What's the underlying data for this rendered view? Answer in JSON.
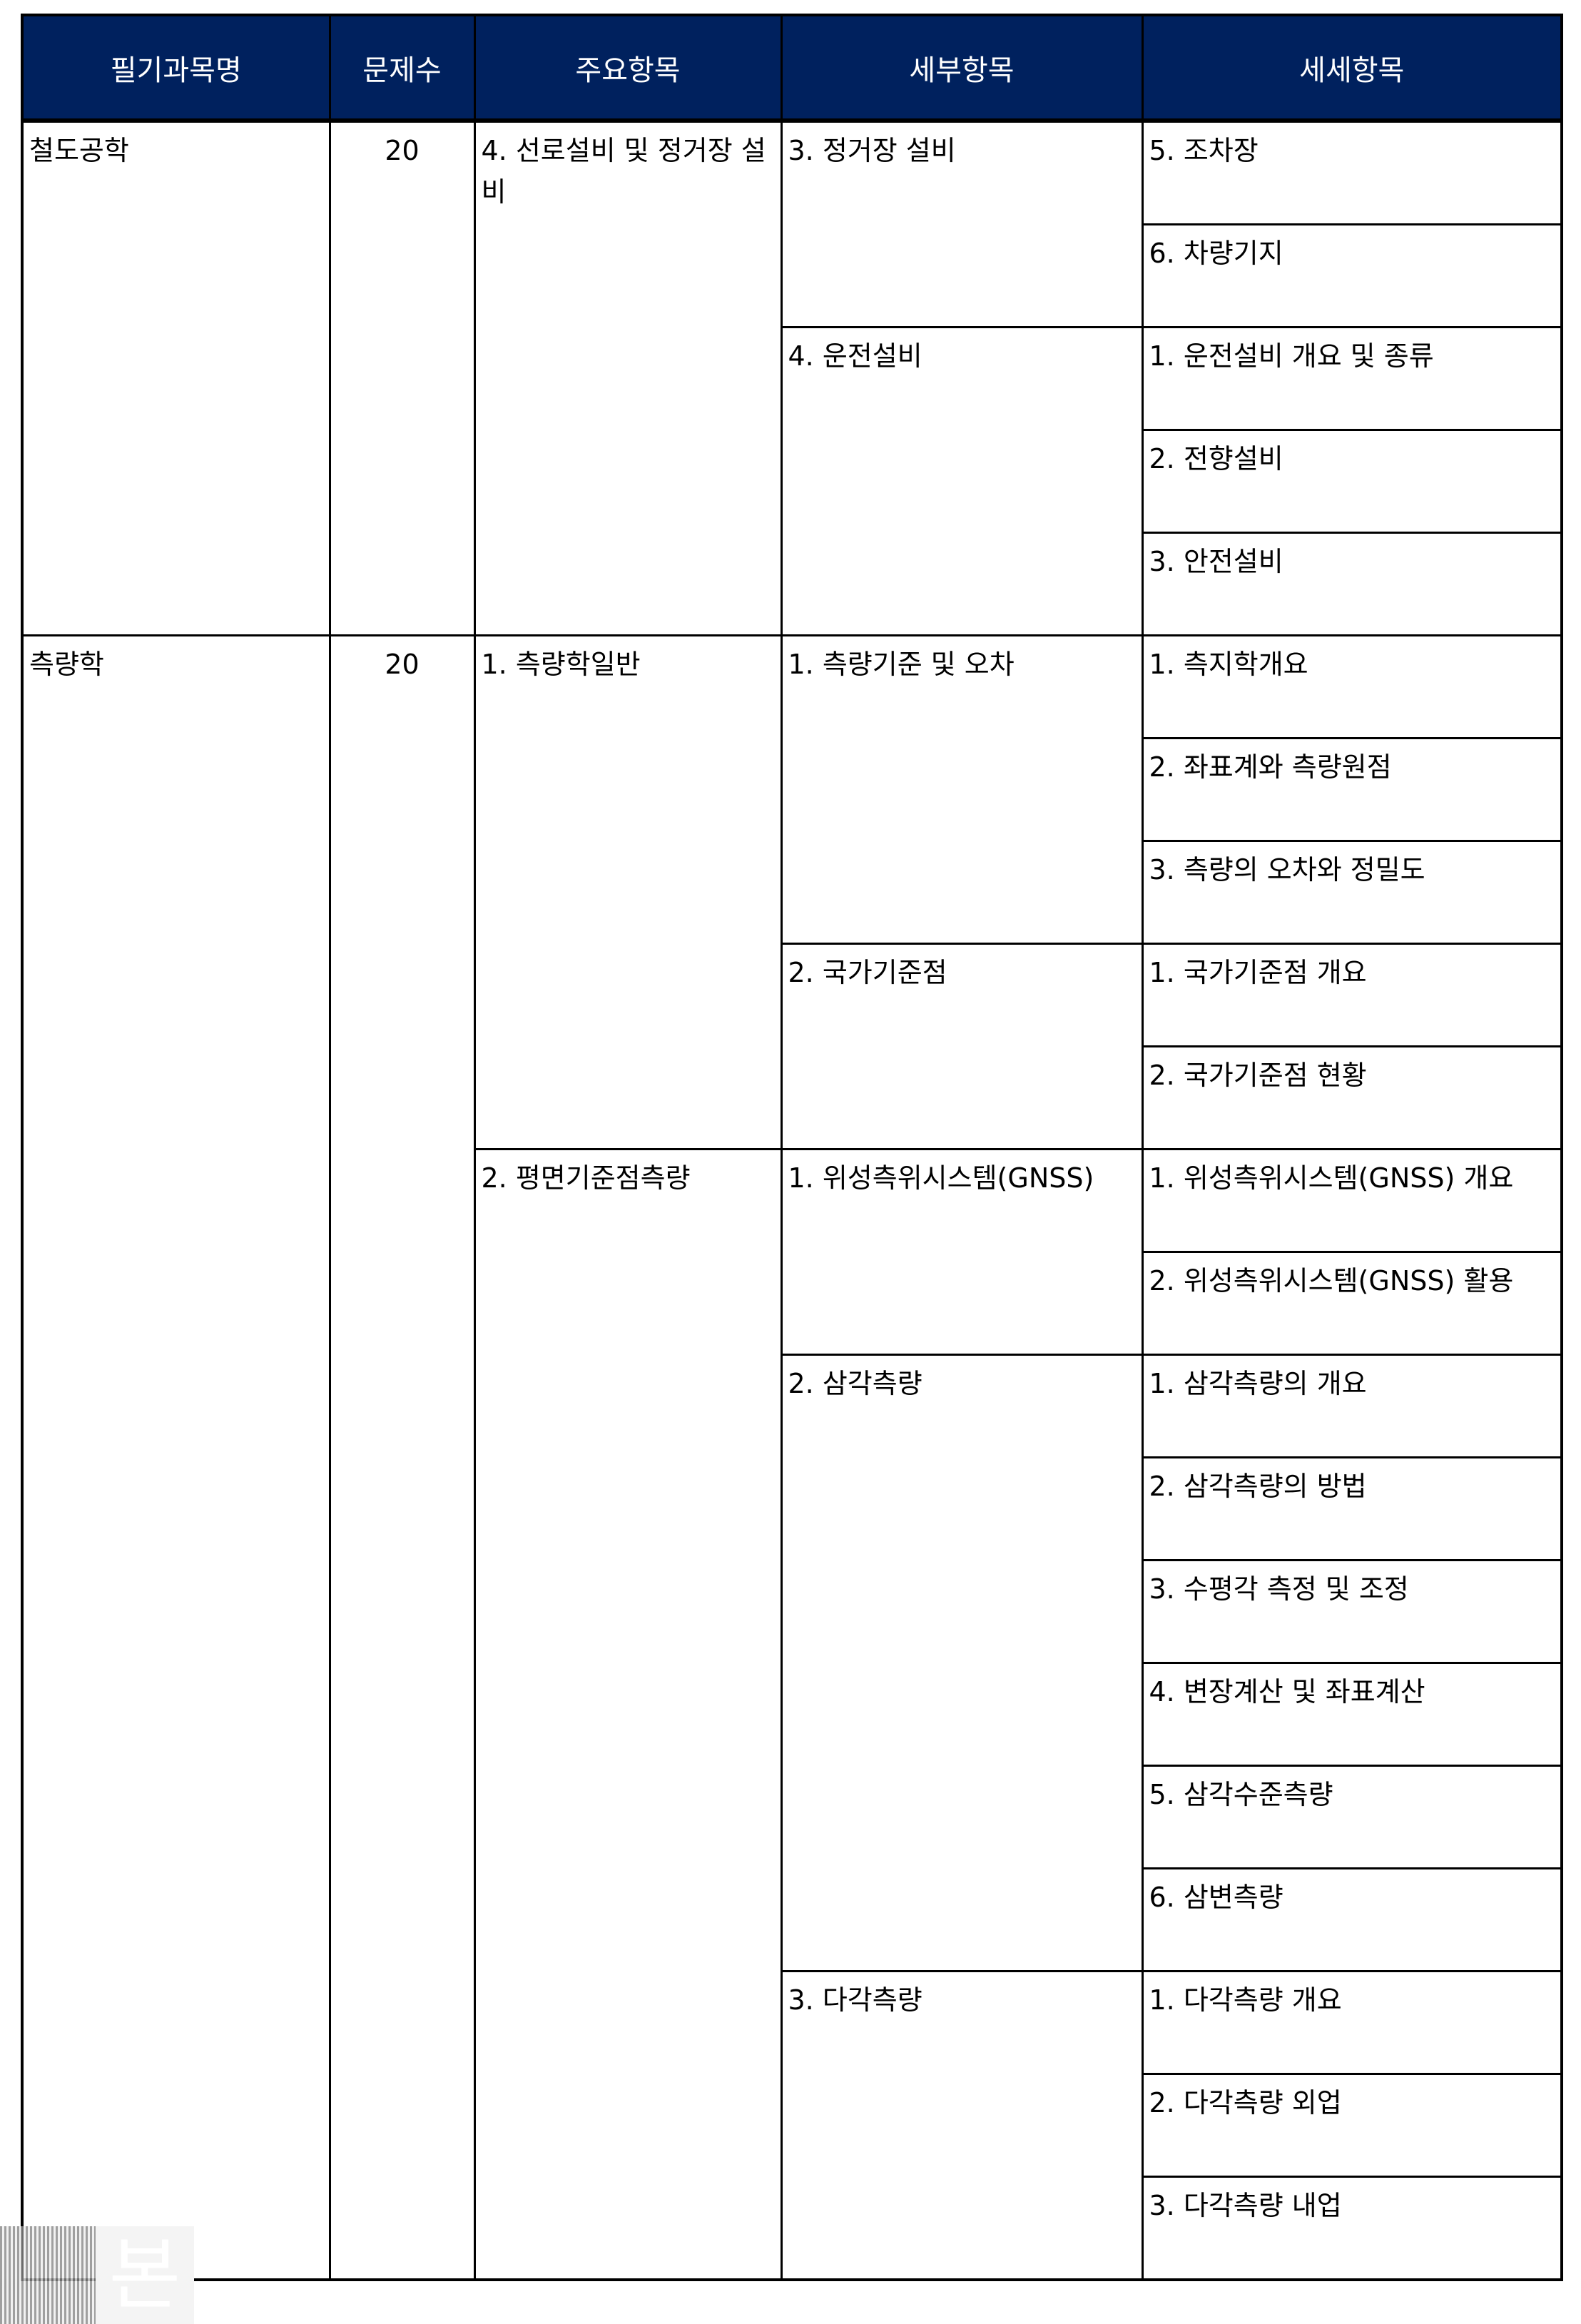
{
  "headers": [
    "필기과목명",
    "문제수",
    "주요항목",
    "세부항목",
    "세세항목"
  ],
  "subjects": [
    {
      "name": "철도공학",
      "count": "20",
      "main": [
        {
          "label": "4. 선로설비 및 정거장 설비",
          "details": [
            {
              "label": "3. 정거장 설비",
              "items": [
                "5. 조차장",
                "6. 차량기지"
              ]
            },
            {
              "label": "4. 운전설비",
              "items": [
                "1. 운전설비 개요 및 종류",
                "2. 전향설비",
                "3. 안전설비"
              ]
            }
          ]
        }
      ]
    },
    {
      "name": "측량학",
      "count": "20",
      "main": [
        {
          "label": "1. 측량학일반",
          "details": [
            {
              "label": "1. 측량기준 및 오차",
              "items": [
                "1. 측지학개요",
                "2. 좌표계와 측량원점",
                "3. 측량의 오차와 정밀도"
              ]
            },
            {
              "label": "2. 국가기준점",
              "items": [
                "1. 국가기준점 개요",
                "2. 국가기준점 현황"
              ]
            }
          ]
        },
        {
          "label": "2. 평면기준점측량",
          "details": [
            {
              "label": "1. 위성측위시스템(GNSS)",
              "items": [
                "1. 위성측위시스템(GNSS) 개요",
                "2. 위성측위시스템(GNSS) 활용"
              ]
            },
            {
              "label": "2. 삼각측량",
              "items": [
                "1. 삼각측량의 개요",
                "2. 삼각측량의 방법",
                "3. 수평각 측정 및 조정",
                "4. 변장계산 및 좌표계산",
                "5. 삼각수준측량",
                "6. 삼변측량"
              ]
            },
            {
              "label": "3. 다각측량",
              "items": [
                "1. 다각측량 개요",
                "2. 다각측량 외업",
                "3. 다각측량 내업"
              ]
            }
          ]
        }
      ]
    }
  ],
  "watermark": "본",
  "colors": {
    "header_bg": "#00215e",
    "header_text": "#ffffff"
  }
}
